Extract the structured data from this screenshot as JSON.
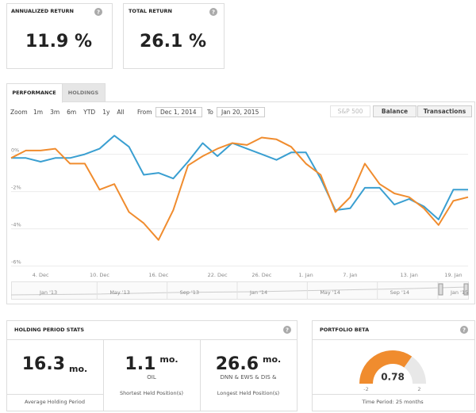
{
  "help_icon": "?",
  "cards": [
    {
      "title": "ANNUALIZED RETURN",
      "value": "11.9 %"
    },
    {
      "title": "TOTAL RETURN",
      "value": "26.1 %"
    }
  ],
  "tabs": [
    "PERFORMANCE",
    "HOLDINGS"
  ],
  "toolbar": {
    "zoom_label": "Zoom",
    "zoom_options": [
      "1m",
      "3m",
      "6m",
      "YTD",
      "1y",
      "All"
    ],
    "from_label": "From",
    "from_date": "Dec 1, 2014",
    "to_label": "To",
    "to_date": "Jan 20, 2015",
    "buttons": [
      "S&P 500",
      "Balance",
      "Transactions"
    ]
  },
  "chart_data": {
    "type": "line",
    "categories": [
      null,
      null,
      "4. Dec",
      null,
      null,
      null,
      "10. Dec",
      null,
      null,
      null,
      "16. Dec",
      null,
      null,
      null,
      "22. Dec",
      null,
      null,
      "26. Dec",
      null,
      null,
      "1. Jan",
      null,
      null,
      "7. Jan",
      null,
      null,
      null,
      "13. Jan",
      null,
      null,
      "19. Jan",
      null
    ],
    "series": [
      {
        "color": "#3a9fd1",
        "values": [
          -0.2,
          -0.2,
          -0.4,
          -0.2,
          -0.2,
          0.0,
          0.3,
          1.0,
          0.4,
          -1.1,
          -1.0,
          -1.3,
          -0.4,
          0.6,
          -0.1,
          0.6,
          0.3,
          0.0,
          -0.3,
          0.1,
          0.1,
          -1.3,
          -3.0,
          -2.9,
          -1.8,
          -1.8,
          -2.7,
          -2.4,
          -2.8,
          -3.5,
          -1.9,
          -1.9
        ]
      },
      {
        "color": "#f08c2e",
        "values": [
          -0.2,
          0.2,
          0.2,
          0.3,
          -0.5,
          -0.5,
          -1.9,
          -1.6,
          -3.1,
          -3.7,
          -4.6,
          -3.0,
          -0.6,
          -0.1,
          0.3,
          0.6,
          0.5,
          0.9,
          0.8,
          0.4,
          -0.5,
          -1.1,
          -3.1,
          -2.3,
          -0.5,
          -1.6,
          -2.1,
          -2.3,
          -2.9,
          -3.8,
          -2.5,
          -2.3
        ]
      }
    ],
    "ylim": [
      -6.4,
      1.9
    ],
    "yticks": [
      {
        "value": 0,
        "label": "0%"
      },
      {
        "value": -2,
        "label": "-2%"
      },
      {
        "value": -4,
        "label": "-4%"
      },
      {
        "value": -6,
        "label": "-6%"
      }
    ],
    "grid": true
  },
  "navigator": {
    "labels": [
      "Jan '13",
      "May '13",
      "Sep '13",
      "Jan '14",
      "May '14",
      "Sep '14",
      "Jan '15"
    ]
  },
  "holding_stats": {
    "title": "HOLDING PERIOD STATS",
    "items": [
      {
        "value": "16.3",
        "unit": "mo.",
        "caption": "Average Holding Period"
      },
      {
        "value": "1.1",
        "unit": "mo.",
        "position": "OIL",
        "caption": "Shortest Held Position(s)"
      },
      {
        "value": "26.6",
        "unit": "mo.",
        "position": "DNN & EWS & DIS &",
        "caption": "Longest Held Position(s)"
      }
    ]
  },
  "beta": {
    "title": "PORTFOLIO BETA",
    "gauge": {
      "value": 0.78,
      "min": -2,
      "max": 2,
      "color": "#f08c2e"
    },
    "period": "Time Period: 25 months"
  }
}
